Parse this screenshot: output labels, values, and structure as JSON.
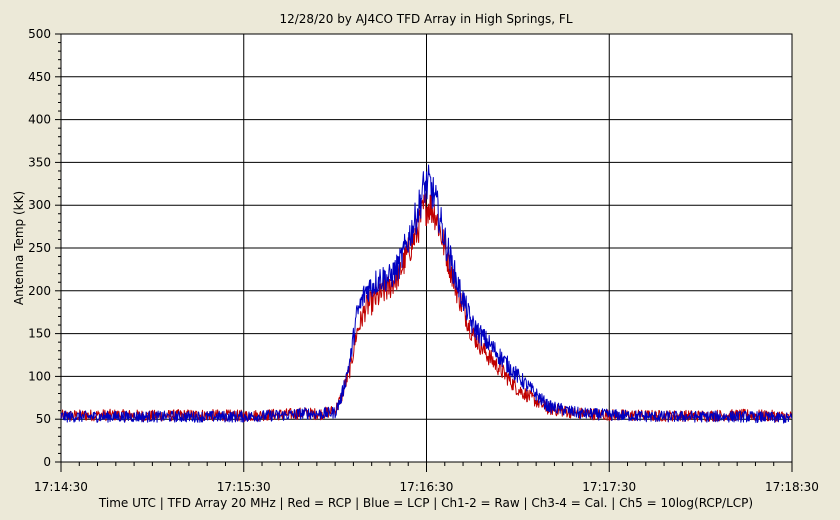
{
  "chart_data": {
    "type": "line",
    "title": "12/28/20  by  AJ4CO TFD Array  in  High Springs, FL",
    "xlabel": "Time UTC | TFD Array 20 MHz | Red = RCP | Blue = LCP | Ch1-2 = Raw | Ch3-4 = Cal. | Ch5 = 10log(RCP/LCP)",
    "ylabel": "Antenna Temp (kK)",
    "ylim": [
      0,
      500
    ],
    "yticks": [
      0,
      50,
      100,
      150,
      200,
      250,
      300,
      350,
      400,
      450,
      500
    ],
    "xlim": [
      "17:14:30",
      "17:18:30"
    ],
    "xticks": [
      "17:14:30",
      "17:15:30",
      "17:16:30",
      "17:17:30",
      "17:18:30"
    ],
    "grid": true,
    "series": [
      {
        "name": "Red = RCP",
        "color": "#C00000",
        "x": [
          "17:14:30",
          "17:14:45",
          "17:15:00",
          "17:15:15",
          "17:15:30",
          "17:15:45",
          "17:15:50",
          "17:15:55",
          "17:16:00",
          "17:16:02",
          "17:16:05",
          "17:16:07",
          "17:16:10",
          "17:16:15",
          "17:16:18",
          "17:16:21",
          "17:16:24",
          "17:16:27",
          "17:16:29",
          "17:16:31",
          "17:16:33",
          "17:16:36",
          "17:16:40",
          "17:16:45",
          "17:16:50",
          "17:16:55",
          "17:17:00",
          "17:17:10",
          "17:17:20",
          "17:17:30",
          "17:17:45",
          "17:18:00",
          "17:18:15",
          "17:18:30"
        ],
        "y": [
          54,
          55,
          54,
          55,
          54,
          56,
          57,
          56,
          60,
          75,
          110,
          150,
          180,
          195,
          205,
          220,
          245,
          270,
          295,
          300,
          290,
          250,
          200,
          150,
          125,
          105,
          85,
          62,
          57,
          55,
          54,
          54,
          55,
          53
        ]
      },
      {
        "name": "Blue = LCP",
        "color": "#0000C0",
        "x": [
          "17:14:30",
          "17:14:45",
          "17:15:00",
          "17:15:15",
          "17:15:30",
          "17:15:45",
          "17:15:50",
          "17:15:55",
          "17:16:00",
          "17:16:02",
          "17:16:05",
          "17:16:07",
          "17:16:10",
          "17:16:15",
          "17:16:18",
          "17:16:21",
          "17:16:24",
          "17:16:27",
          "17:16:29",
          "17:16:31",
          "17:16:33",
          "17:16:36",
          "17:16:40",
          "17:16:45",
          "17:16:50",
          "17:16:55",
          "17:17:00",
          "17:17:10",
          "17:17:20",
          "17:17:30",
          "17:17:45",
          "17:18:00",
          "17:18:15",
          "17:18:30"
        ],
        "y": [
          53,
          53,
          53,
          53,
          53,
          55,
          57,
          56,
          58,
          75,
          120,
          170,
          200,
          215,
          215,
          230,
          260,
          290,
          320,
          325,
          305,
          260,
          210,
          160,
          140,
          120,
          100,
          65,
          57,
          55,
          53,
          53,
          53,
          51
        ]
      }
    ]
  }
}
